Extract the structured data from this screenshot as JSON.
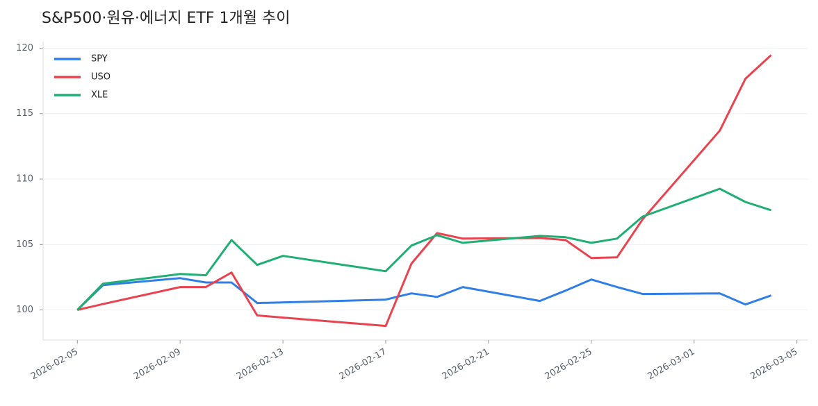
{
  "chart_data": {
    "type": "line",
    "title": "S&P500·원유·에너지 ETF 1개월 추이",
    "x": [
      "2026-02-05",
      "2026-02-06",
      "2026-02-09",
      "2026-02-10",
      "2026-02-11",
      "2026-02-12",
      "2026-02-13",
      "2026-02-17",
      "2026-02-18",
      "2026-02-19",
      "2026-02-20",
      "2026-02-23",
      "2026-02-24",
      "2026-02-25",
      "2026-02-26",
      "2026-02-27",
      "2026-03-02",
      "2026-03-03",
      "2026-03-04"
    ],
    "series": [
      {
        "name": "SPY",
        "color": "#2f7fe6",
        "values": [
          100,
          101.9,
          102.43,
          102.1,
          102.1,
          100.53,
          100.58,
          100.79,
          101.27,
          101.0,
          101.75,
          100.69,
          101.48,
          102.33,
          101.75,
          101.22,
          101.27,
          100.42,
          101.11
        ]
      },
      {
        "name": "USO",
        "color": "#e8434f",
        "values": [
          100,
          100.45,
          101.75,
          101.75,
          102.86,
          99.58,
          99.42,
          98.78,
          103.54,
          105.87,
          105.45,
          105.5,
          105.34,
          103.97,
          104.02,
          106.93,
          113.7,
          117.67,
          119.47
        ]
      },
      {
        "name": "XLE",
        "color": "#1fae74",
        "values": [
          100,
          102.01,
          102.75,
          102.65,
          105.34,
          103.44,
          104.13,
          102.96,
          104.92,
          105.71,
          105.13,
          105.66,
          105.56,
          105.13,
          105.45,
          107.14,
          109.26,
          108.25,
          107.62
        ]
      }
    ],
    "xlim": [
      "2026-02-03T16:00",
      "2026-03-05T10:00"
    ],
    "xticks": [
      "2026-02-05",
      "2026-02-09",
      "2026-02-13",
      "2026-02-17",
      "2026-02-21",
      "2026-02-25",
      "2026-03-01",
      "2026-03-05"
    ],
    "ylim": [
      97.7,
      120.5
    ],
    "yticks": [
      100,
      105,
      110,
      115,
      120
    ],
    "grid": true,
    "legend": "upper-left"
  }
}
